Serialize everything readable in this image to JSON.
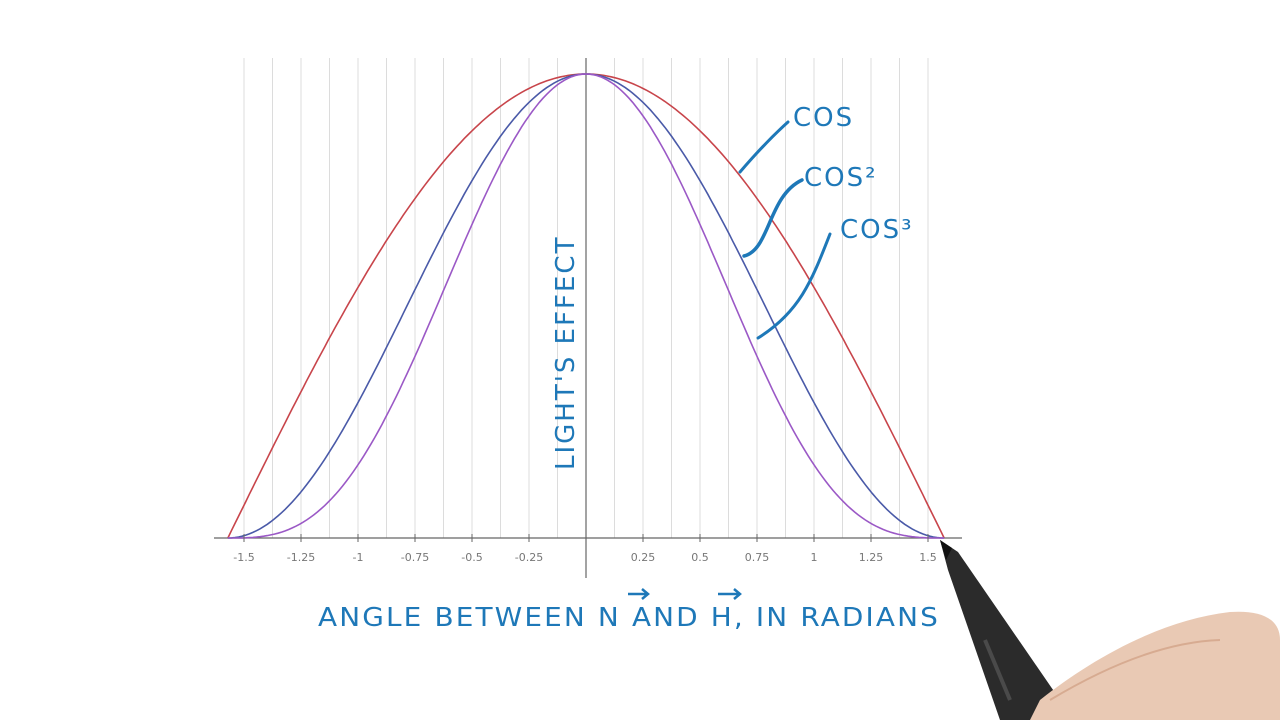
{
  "chart_data": {
    "type": "line",
    "x_ticks": [
      -1.5,
      -1.25,
      -1,
      -0.75,
      -0.5,
      -0.25,
      0.25,
      0.5,
      0.75,
      1,
      1.25,
      1.5
    ],
    "x_tick_labels": [
      "-1.5",
      "-1.25",
      "-1",
      "-0.75",
      "-0.5",
      "-0.25",
      "0.25",
      "0.5",
      "0.75",
      "1",
      "1.25",
      "1.5"
    ],
    "xlim": [
      -1.5708,
      1.5708
    ],
    "ylim": [
      0,
      1
    ],
    "x": [
      -1.5708,
      -1.5,
      -1.25,
      -1,
      -0.75,
      -0.5,
      -0.25,
      0,
      0.25,
      0.5,
      0.75,
      1,
      1.25,
      1.5,
      1.5708
    ],
    "series": [
      {
        "name": "cos",
        "color": "#c8454b",
        "values": [
          0,
          0.071,
          0.315,
          0.54,
          0.732,
          0.878,
          0.969,
          1,
          0.969,
          0.878,
          0.732,
          0.54,
          0.315,
          0.071,
          0
        ]
      },
      {
        "name": "cos²",
        "color": "#4a5aa8",
        "values": [
          0,
          0.005,
          0.099,
          0.292,
          0.535,
          0.77,
          0.939,
          1,
          0.939,
          0.77,
          0.535,
          0.292,
          0.099,
          0.005,
          0
        ]
      },
      {
        "name": "cos³",
        "color": "#9b59c6",
        "values": [
          0,
          0.0,
          0.031,
          0.158,
          0.391,
          0.676,
          0.91,
          1,
          0.91,
          0.676,
          0.391,
          0.158,
          0.031,
          0.0,
          0
        ]
      }
    ],
    "ylabel": "LIGHT'S EFFECT",
    "xlabel": "ANGLE BETWEEN N AND H, IN RADIANS",
    "annotations": [
      "COS",
      "COS²",
      "COS³"
    ],
    "grid": true
  },
  "colors": {
    "ink": "#1e78b8",
    "grid": "#dcdcdc",
    "axis": "#666666"
  }
}
